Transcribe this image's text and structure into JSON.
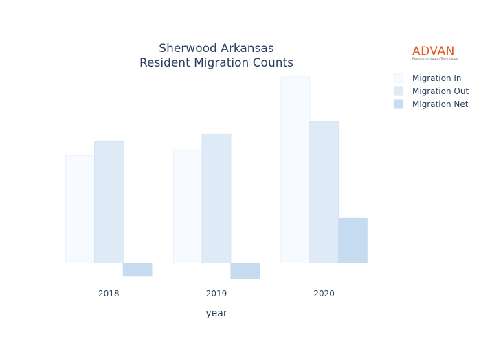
{
  "chart_data": {
    "type": "bar",
    "title_lines": [
      "Sherwood Arkansas",
      "Resident Migration Counts"
    ],
    "xlabel": "year",
    "ylabel": "",
    "categories": [
      "2018",
      "2019",
      "2020"
    ],
    "series": [
      {
        "name": "Migration In",
        "values": [
          1300,
          1370,
          2250
        ],
        "color": "#f7fbff",
        "stroke": "#e9f0f8"
      },
      {
        "name": "Migration Out",
        "values": [
          1470,
          1560,
          1710
        ],
        "color": "#deebf7",
        "stroke": "#d6e4f2"
      },
      {
        "name": "Migration Net",
        "values": [
          -160,
          -190,
          540
        ],
        "color": "#c6dbef",
        "stroke": "#c6dbef"
      }
    ],
    "ylim": [
      -220,
      2350
    ],
    "grid": false,
    "show_y_ticks": false,
    "legend_position": "top-right"
  },
  "logo": {
    "word": "ADVAN",
    "tagline": "Research through Technology"
  }
}
